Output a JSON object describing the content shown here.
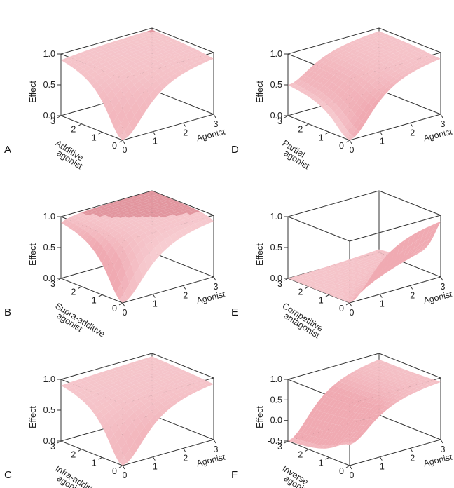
{
  "chart_data": [
    {
      "type": "surface3d",
      "panel_label": "A",
      "xlabel": "Agonist",
      "ylabel_lines": [
        "Additive",
        "agonist"
      ],
      "zlabel": "Effect",
      "x_ticks": [
        "0",
        "1",
        "2",
        "3"
      ],
      "y_ticks": [
        "0",
        "1",
        "2",
        "3"
      ],
      "z_ticks": [
        "0.0",
        "0.5",
        "1.0"
      ],
      "xlim": [
        0,
        3
      ],
      "ylim": [
        0,
        3
      ],
      "zlim": [
        0,
        1
      ],
      "model": "additive",
      "surface_points": [
        {
          "agonist": 0,
          "second": 0,
          "effect": 0.0
        },
        {
          "agonist": 1,
          "second": 0,
          "effect": 0.5
        },
        {
          "agonist": 0,
          "second": 1,
          "effect": 0.5
        },
        {
          "agonist": 3,
          "second": 3,
          "effect": 1.0
        }
      ]
    },
    {
      "type": "surface3d",
      "panel_label": "B",
      "xlabel": "Agonist",
      "ylabel_lines": [
        "Supra-additive",
        "agonist"
      ],
      "zlabel": "Effect",
      "x_ticks": [
        "0",
        "1",
        "2",
        "3"
      ],
      "y_ticks": [
        "0",
        "1",
        "2",
        "3"
      ],
      "z_ticks": [
        "0.0",
        "0.5",
        "1.0"
      ],
      "xlim": [
        0,
        3
      ],
      "ylim": [
        0,
        3
      ],
      "zlim": [
        0,
        1
      ],
      "model": "supra",
      "surface_points": [
        {
          "agonist": 0,
          "second": 0,
          "effect": 0.0
        },
        {
          "agonist": 1,
          "second": 1,
          "effect": 0.9
        },
        {
          "agonist": 3,
          "second": 3,
          "effect": 1.0
        }
      ]
    },
    {
      "type": "surface3d",
      "panel_label": "C",
      "xlabel": "Agonist",
      "ylabel_lines": [
        "Infra-additive",
        "agonist"
      ],
      "zlabel": "Effect",
      "x_ticks": [
        "0",
        "1",
        "2",
        "3"
      ],
      "y_ticks": [
        "0",
        "1",
        "2",
        "3"
      ],
      "z_ticks": [
        "0.0",
        "0.5",
        "1.0"
      ],
      "xlim": [
        0,
        3
      ],
      "ylim": [
        0,
        3
      ],
      "zlim": [
        0,
        1
      ],
      "model": "infra",
      "surface_points": [
        {
          "agonist": 0,
          "second": 0,
          "effect": 0.0
        },
        {
          "agonist": 1,
          "second": 1,
          "effect": 0.6
        },
        {
          "agonist": 3,
          "second": 3,
          "effect": 1.0
        }
      ]
    },
    {
      "type": "surface3d",
      "panel_label": "D",
      "xlabel": "Agonist",
      "ylabel_lines": [
        "Partial",
        "agonist"
      ],
      "zlabel": "Effect",
      "x_ticks": [
        "0",
        "1",
        "2",
        "3"
      ],
      "y_ticks": [
        "0",
        "1",
        "2",
        "3"
      ],
      "z_ticks": [
        "0.0",
        "0.5",
        "1.0"
      ],
      "xlim": [
        0,
        3
      ],
      "ylim": [
        0,
        3
      ],
      "zlim": [
        0,
        1
      ],
      "model": "partial",
      "surface_points": [
        {
          "agonist": 0,
          "second": 0,
          "effect": 0.0
        },
        {
          "agonist": 0,
          "second": 3,
          "effect": 0.5
        },
        {
          "agonist": 3,
          "second": 0,
          "effect": 0.98
        },
        {
          "agonist": 3,
          "second": 3,
          "effect": 0.9
        }
      ]
    },
    {
      "type": "surface3d",
      "panel_label": "E",
      "xlabel": "Agonist",
      "ylabel_lines": [
        "Competitive",
        "antagonist"
      ],
      "zlabel": "Effect",
      "x_ticks": [
        "0",
        "1",
        "2",
        "3"
      ],
      "y_ticks": [
        "0",
        "1",
        "2",
        "3"
      ],
      "z_ticks": [
        "0.0",
        "0.5",
        "1.0"
      ],
      "xlim": [
        0,
        3
      ],
      "ylim": [
        0,
        3
      ],
      "zlim": [
        0,
        1
      ],
      "model": "competitive",
      "surface_points": [
        {
          "agonist": 0,
          "second": 0,
          "effect": 0.0
        },
        {
          "agonist": 3,
          "second": 0,
          "effect": 0.98
        },
        {
          "agonist": 3,
          "second": 3,
          "effect": 0.1
        }
      ]
    },
    {
      "type": "surface3d",
      "panel_label": "F",
      "xlabel": "Agonist",
      "ylabel_lines": [
        "Inverse",
        "agonist"
      ],
      "zlabel": "Effect",
      "x_ticks": [
        "0",
        "1",
        "2",
        "3"
      ],
      "y_ticks": [
        "0",
        "1",
        "2",
        "3"
      ],
      "z_ticks": [
        "-0.5",
        "0.0",
        "0.5",
        "1.0"
      ],
      "xlim": [
        0,
        3
      ],
      "ylim": [
        0,
        3
      ],
      "zlim": [
        -0.5,
        1
      ],
      "model": "inverse",
      "surface_points": [
        {
          "agonist": 0,
          "second": 0,
          "effect": 0.0
        },
        {
          "agonist": 0,
          "second": 3,
          "effect": -0.5
        },
        {
          "agonist": 3,
          "second": 0,
          "effect": 0.98
        },
        {
          "agonist": 3,
          "second": 3,
          "effect": 0.0
        }
      ]
    }
  ],
  "colors": {
    "surface_light": "#fbe0e3",
    "surface_mid": "#f0aab2",
    "surface_dark": "#c9707c",
    "mesh": "#3a2326",
    "axes": "#333333"
  }
}
